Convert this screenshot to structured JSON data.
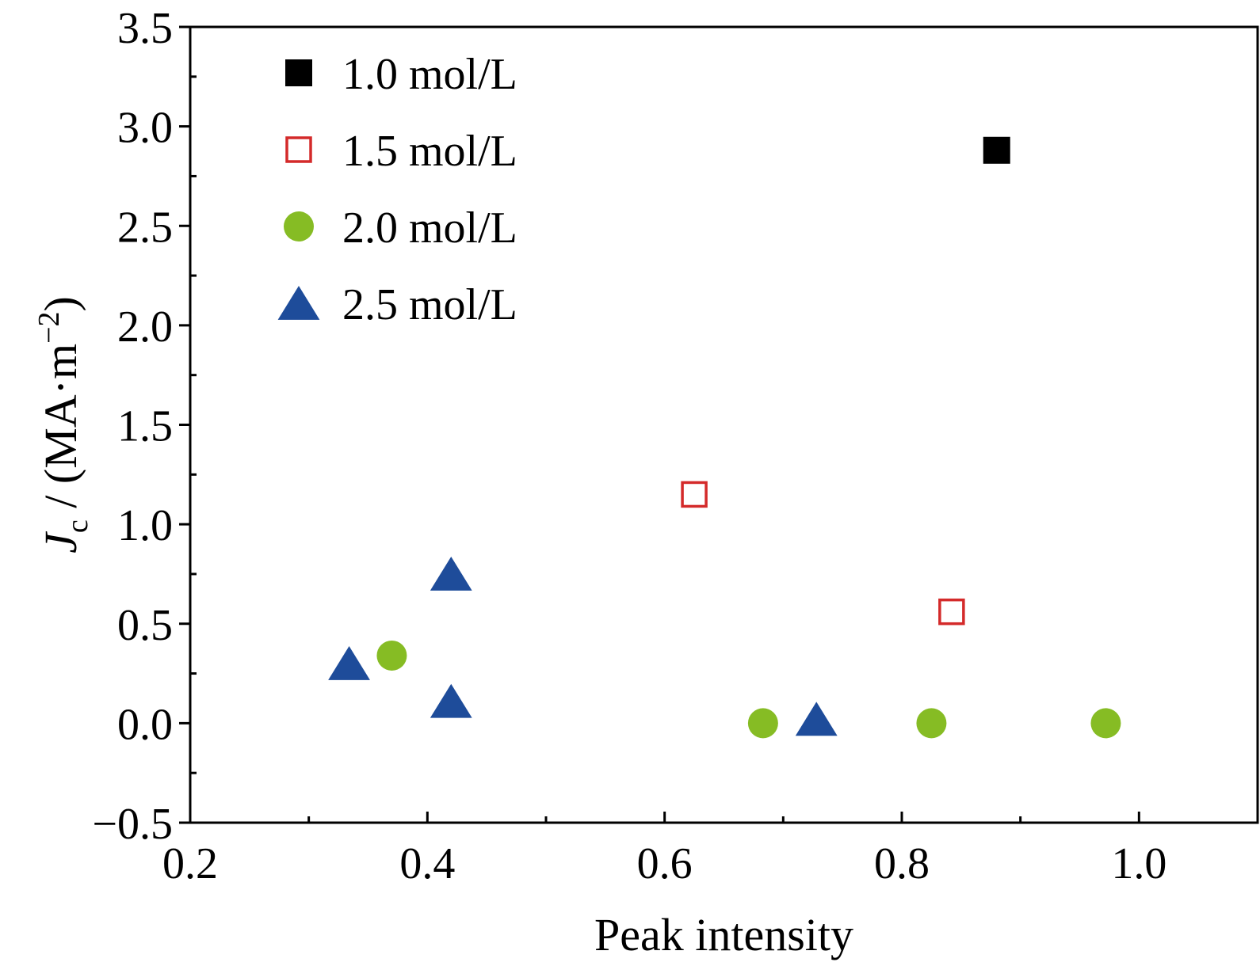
{
  "chart_data": {
    "type": "scatter",
    "xlabel": "Peak intensity",
    "ylabel": {
      "symbol": "J",
      "subscript": "c",
      "unit_prefix": " / (MA·m",
      "superscript": "−2",
      "unit_suffix": ")"
    },
    "xlim": [
      0.2,
      1.1
    ],
    "ylim": [
      -0.5,
      3.5
    ],
    "x_ticks": [
      0.2,
      0.4,
      0.6,
      0.8,
      1.0
    ],
    "x_tick_labels": [
      "0.2",
      "0.4",
      "0.6",
      "0.8",
      "1.0"
    ],
    "x_minor_ticks": [
      0.3,
      0.5,
      0.7,
      0.9
    ],
    "y_ticks": [
      -0.5,
      0.0,
      0.5,
      1.0,
      1.5,
      2.0,
      2.5,
      3.0,
      3.5
    ],
    "y_tick_labels": [
      "−0.5",
      "0.0",
      "0.5",
      "1.0",
      "1.5",
      "2.0",
      "2.5",
      "3.0",
      "3.5"
    ],
    "y_minor_ticks": [
      -0.25,
      0.25,
      0.75,
      1.25,
      1.75,
      2.25,
      2.75,
      3.25
    ],
    "grid": false,
    "legend_position": "top-left",
    "series": [
      {
        "name": "1.0 mol/L",
        "marker": "square-filled",
        "color": "#000000",
        "points": [
          [
            0.88,
            2.88
          ]
        ]
      },
      {
        "name": "1.5 mol/L",
        "marker": "square-open",
        "color": "#d42a2a",
        "points": [
          [
            0.625,
            1.15
          ],
          [
            0.842,
            0.56
          ]
        ]
      },
      {
        "name": "2.0 mol/L",
        "marker": "circle",
        "color": "#86bc24",
        "points": [
          [
            0.37,
            0.34
          ],
          [
            0.683,
            0.0
          ],
          [
            0.825,
            0.0
          ],
          [
            0.972,
            0.0
          ]
        ]
      },
      {
        "name": "2.5 mol/L",
        "marker": "triangle",
        "color": "#1e4c9a",
        "points": [
          [
            0.334,
            0.3
          ],
          [
            0.42,
            0.75
          ],
          [
            0.42,
            0.11
          ],
          [
            0.728,
            0.02
          ]
        ]
      }
    ]
  }
}
